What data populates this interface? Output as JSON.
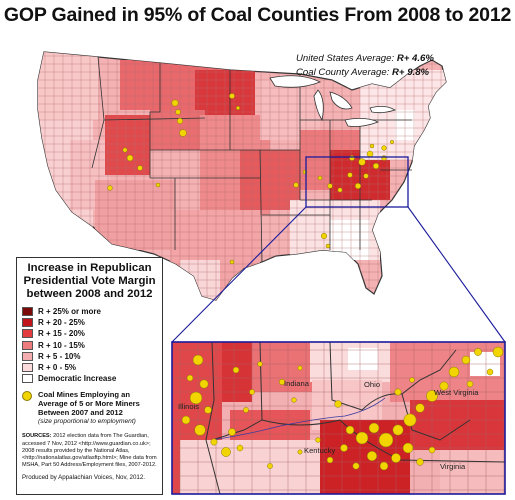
{
  "title": "GOP Gained in 95% of Coal Counties From 2008 to 2012",
  "averages": {
    "us_label": "United States Average:",
    "us_value": "R+ 4.6%",
    "coal_label": "Coal County Average:",
    "coal_value": "R+ 9.8%"
  },
  "legend": {
    "title": "Increase in Republican Presidential Vote Margin between 2008 and 2012",
    "categories": [
      {
        "label": "R + 25% or more",
        "color": "#7a0a0a"
      },
      {
        "label": "R + 20 - 25%",
        "color": "#c0161b"
      },
      {
        "label": "R + 15 - 20%",
        "color": "#e23c3f"
      },
      {
        "label": "R + 10 - 15%",
        "color": "#ed7c7e"
      },
      {
        "label": "R + 5 - 10%",
        "color": "#f4aeb0"
      },
      {
        "label": "R + 0 - 5%",
        "color": "#fadadb"
      },
      {
        "label": "Democratic Increase",
        "color": "#ffffff"
      }
    ],
    "mines_label": "Coal Mines Employing an Average of 5 or More Miners Between 2007 and 2012",
    "mines_note": "(size proportional to employment)",
    "mine_color": "#f1d400"
  },
  "sources": {
    "heading": "SOURCES:",
    "text": "2012 election data from The Guardian, accessed 7 Nov, 2012 <http://www.guardian.co.uk>; 2008 results provided by the National Atlas, <http://nationalatlas.gov/atlasftp.html>; Mine data from MSHA, Part 50 Address/Employment files, 2007-2012.",
    "producer": "Produced by Appalachian Voices, Nov, 2012."
  },
  "inset": {
    "labels": [
      "Illinois",
      "Indiana",
      "Ohio",
      "West Virginia",
      "Kentucky",
      "Virginia"
    ]
  }
}
